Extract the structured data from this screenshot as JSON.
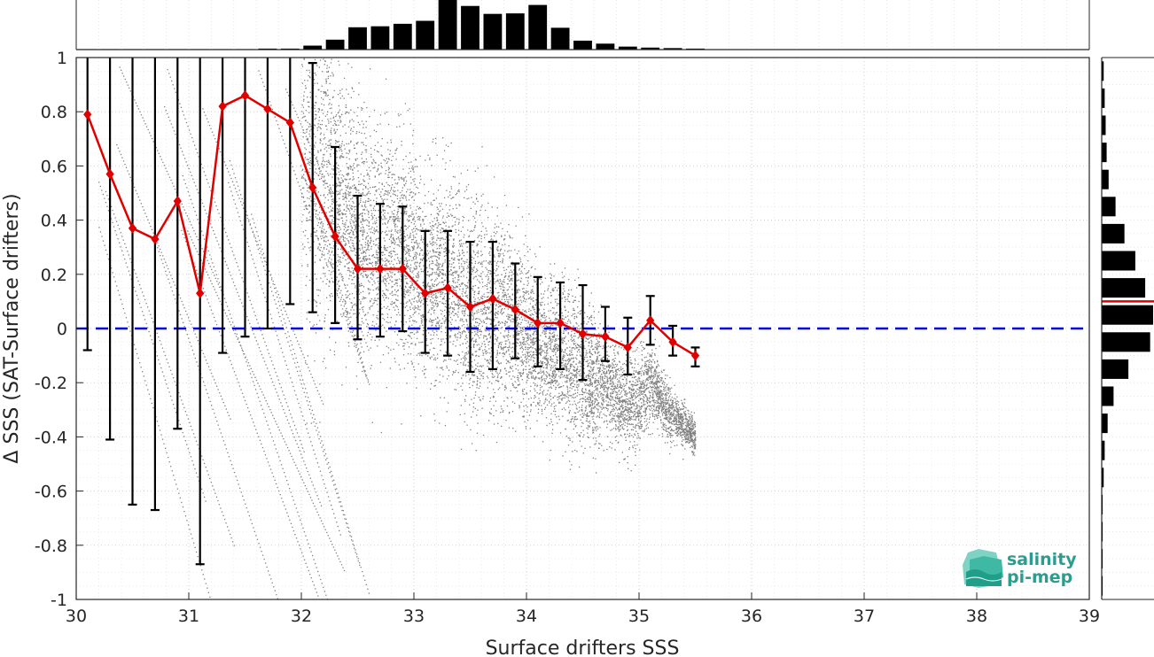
{
  "chart_data": {
    "type": "scatter",
    "xlabel": "Surface drifters SSS",
    "ylabel": "Δ SSS (SAT-Surface drifters)",
    "xlim": [
      30,
      39
    ],
    "ylim": [
      -1,
      1
    ],
    "xticks": [
      30,
      31,
      32,
      33,
      34,
      35,
      36,
      37,
      38,
      39
    ],
    "yticks": [
      -1,
      -0.8,
      -0.6,
      -0.4,
      -0.2,
      0,
      0.2,
      0.4,
      0.6,
      0.8,
      1
    ],
    "ytick_labels": [
      "-1",
      "-0.8",
      "-0.6",
      "-0.4",
      "-0.2",
      "0",
      "0.2",
      "0.4",
      "0.6",
      "0.8",
      "1"
    ],
    "grid": true,
    "reference_line": {
      "y": 0,
      "color": "#0000ee",
      "style": "dashed"
    },
    "scatter_color": "#808080",
    "binned_mean": {
      "color": "#e00000",
      "x": [
        30.1,
        30.3,
        30.5,
        30.7,
        30.9,
        31.1,
        31.3,
        31.5,
        31.7,
        31.9,
        32.1,
        32.3,
        32.5,
        32.7,
        32.9,
        33.1,
        33.3,
        33.5,
        33.7,
        33.9,
        34.1,
        34.3,
        34.5,
        34.7,
        34.9,
        35.1,
        35.3,
        35.5
      ],
      "y": [
        0.79,
        0.57,
        0.37,
        0.33,
        0.47,
        0.13,
        0.82,
        0.86,
        0.81,
        0.76,
        0.52,
        0.34,
        0.22,
        0.22,
        0.22,
        0.13,
        0.15,
        0.08,
        0.11,
        0.07,
        0.02,
        0.02,
        -0.02,
        -0.03,
        -0.07,
        0.03,
        -0.05,
        -0.1
      ],
      "err_low": [
        -0.08,
        -0.41,
        -0.65,
        -0.67,
        -0.37,
        -0.87,
        -0.09,
        -0.03,
        0.0,
        0.09,
        0.06,
        0.02,
        -0.04,
        -0.03,
        -0.01,
        -0.09,
        -0.1,
        -0.16,
        -0.15,
        -0.11,
        -0.14,
        -0.15,
        -0.19,
        -0.12,
        -0.17,
        -0.06,
        -0.1,
        -0.14
      ],
      "err_high": [
        1.0,
        1.0,
        1.0,
        1.0,
        1.0,
        1.0,
        1.0,
        1.0,
        1.0,
        1.0,
        0.98,
        0.67,
        0.49,
        0.46,
        0.45,
        0.36,
        0.36,
        0.32,
        0.32,
        0.24,
        0.19,
        0.17,
        0.16,
        0.08,
        0.04,
        0.12,
        0.01,
        -0.07
      ]
    },
    "top_histogram": {
      "bin_centers": [
        30.1,
        30.3,
        30.5,
        30.7,
        30.9,
        31.1,
        31.3,
        31.5,
        31.7,
        31.9,
        32.1,
        32.3,
        32.5,
        32.7,
        32.9,
        33.1,
        33.3,
        33.5,
        33.7,
        33.9,
        34.1,
        34.3,
        34.5,
        34.7,
        34.9,
        35.1,
        35.3,
        35.5
      ],
      "counts": [
        1,
        1,
        1,
        1,
        1,
        1,
        1,
        1,
        2,
        2,
        8,
        20,
        45,
        47,
        52,
        58,
        100,
        88,
        72,
        73,
        90,
        44,
        18,
        12,
        6,
        4,
        3,
        2
      ]
    },
    "right_histogram": {
      "bin_centers": [
        0.95,
        0.85,
        0.75,
        0.65,
        0.55,
        0.45,
        0.35,
        0.25,
        0.15,
        0.05,
        -0.05,
        -0.15,
        -0.25,
        -0.35,
        -0.45,
        -0.55,
        -0.65,
        -0.75,
        -0.85,
        -0.95
      ],
      "counts": [
        2,
        3,
        4,
        5,
        7,
        14,
        23,
        34,
        44,
        52,
        49,
        27,
        12,
        6,
        3,
        2,
        1,
        1,
        1,
        1
      ],
      "mean_line": {
        "y": 0.1,
        "color": "#e00000"
      }
    }
  },
  "logo": {
    "line1": "salinity",
    "line2": "pi-mep"
  }
}
